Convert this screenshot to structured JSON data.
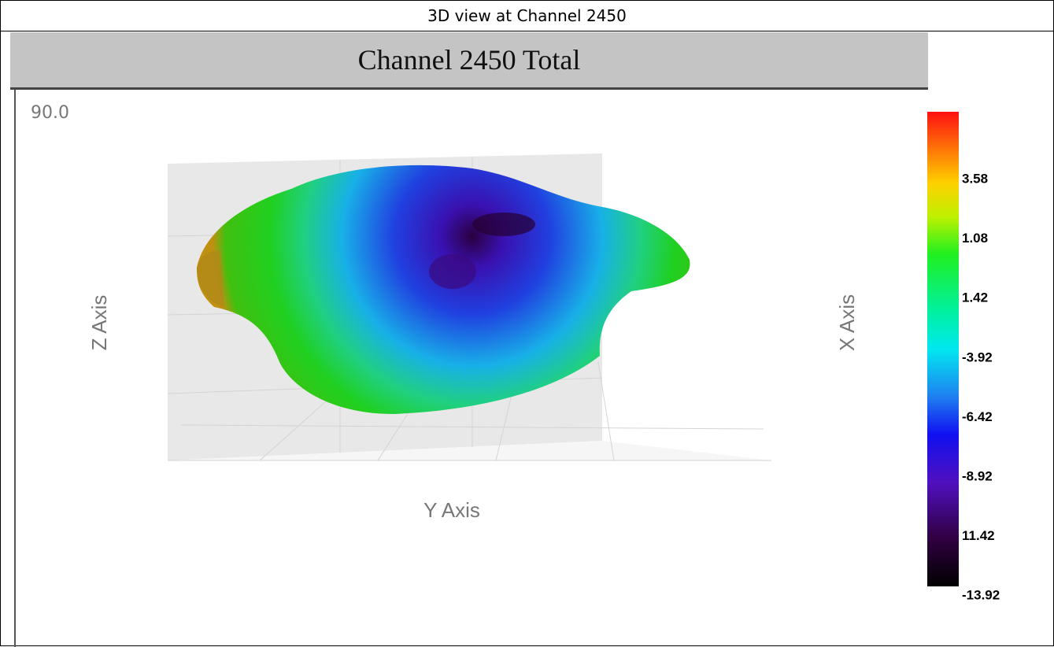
{
  "header": {
    "title": "3D view at Channel 2450"
  },
  "plot": {
    "title": "Channel 2450 Total",
    "angle_label": "90.0",
    "z_axis_label": "Z Axis",
    "y_axis_label": "Y Axis",
    "x_axis_label": "X Axis",
    "colorbar_labels": [
      "3.58",
      "1.08",
      "1.42",
      "-3.92",
      "-6.42",
      "-8.92",
      "11.42",
      "-13.92"
    ]
  }
}
